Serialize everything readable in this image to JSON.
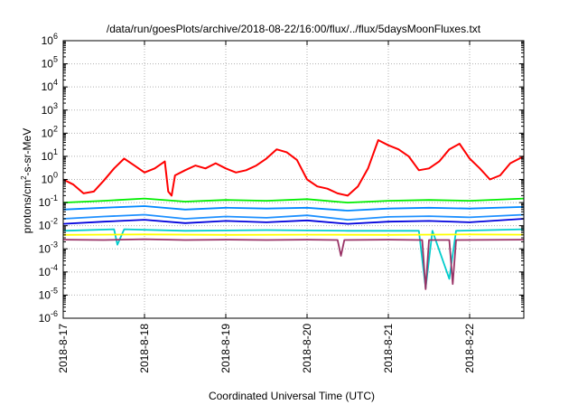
{
  "chart_data": {
    "type": "line",
    "title": "/data/run/goesPlots/archive/2018-08-22/16:00/flux/../flux/5daysMoonFluxes.txt",
    "xlabel": "Coordinated Universal Time (UTC)",
    "ylabel": "protons/cm2-s-sr-MeV",
    "ylabel_parts": {
      "pre": "protons/cm",
      "sup": "2",
      "post": "-s-sr-MeV"
    },
    "yscale": "log",
    "ylim": [
      1e-06,
      1000000.0
    ],
    "xlim": [
      "2018-08-17 00:00",
      "2018-08-22 16:00"
    ],
    "grid": true,
    "legend": "none",
    "y_ticks": [
      {
        "base": "10",
        "exp": "-6",
        "value": 1e-06
      },
      {
        "base": "10",
        "exp": "-5",
        "value": 1e-05
      },
      {
        "base": "10",
        "exp": "-4",
        "value": 0.0001
      },
      {
        "base": "10",
        "exp": "-3",
        "value": 0.001
      },
      {
        "base": "10",
        "exp": "-2",
        "value": 0.01
      },
      {
        "base": "10",
        "exp": "-1",
        "value": 0.1
      },
      {
        "base": "10",
        "exp": "0",
        "value": 1
      },
      {
        "base": "10",
        "exp": "1",
        "value": 10
      },
      {
        "base": "10",
        "exp": "2",
        "value": 100
      },
      {
        "base": "10",
        "exp": "3",
        "value": 1000
      },
      {
        "base": "10",
        "exp": "4",
        "value": 10000
      },
      {
        "base": "10",
        "exp": "5",
        "value": 100000
      },
      {
        "base": "10",
        "exp": "6",
        "value": 1000000
      }
    ],
    "x_ticks": [
      {
        "label": "2018-8-17",
        "date": "2018-08-17 00:00"
      },
      {
        "label": "2018-8-18",
        "date": "2018-08-18 00:00"
      },
      {
        "label": "2018-8-19",
        "date": "2018-08-19 00:00"
      },
      {
        "label": "2018-8-20",
        "date": "2018-08-20 00:00"
      },
      {
        "label": "2018-8-21",
        "date": "2018-08-21 00:00"
      },
      {
        "label": "2018-8-22",
        "date": "2018-08-22 00:00"
      }
    ],
    "series": [
      {
        "color": "#ff0000",
        "points": [
          [
            "2018-08-17 00:00",
            1.0
          ],
          [
            "2018-08-17 03:00",
            0.6
          ],
          [
            "2018-08-17 06:00",
            0.25
          ],
          [
            "2018-08-17 09:00",
            0.3
          ],
          [
            "2018-08-17 12:00",
            0.9
          ],
          [
            "2018-08-17 15:00",
            3.0
          ],
          [
            "2018-08-17 18:00",
            8.0
          ],
          [
            "2018-08-17 21:00",
            4.0
          ],
          [
            "2018-08-18 00:00",
            2.0
          ],
          [
            "2018-08-18 03:00",
            3.0
          ],
          [
            "2018-08-18 06:00",
            6.0
          ],
          [
            "2018-08-18 07:00",
            0.3
          ],
          [
            "2018-08-18 08:00",
            0.2
          ],
          [
            "2018-08-18 09:00",
            1.5
          ],
          [
            "2018-08-18 12:00",
            2.5
          ],
          [
            "2018-08-18 15:00",
            4.0
          ],
          [
            "2018-08-18 18:00",
            3.0
          ],
          [
            "2018-08-18 21:00",
            5.0
          ],
          [
            "2018-08-19 00:00",
            3.0
          ],
          [
            "2018-08-19 03:00",
            2.0
          ],
          [
            "2018-08-19 06:00",
            2.5
          ],
          [
            "2018-08-19 09:00",
            4.0
          ],
          [
            "2018-08-19 12:00",
            8.0
          ],
          [
            "2018-08-19 15:00",
            20
          ],
          [
            "2018-08-19 18:00",
            15
          ],
          [
            "2018-08-19 21:00",
            7.0
          ],
          [
            "2018-08-20 00:00",
            1.0
          ],
          [
            "2018-08-20 03:00",
            0.5
          ],
          [
            "2018-08-20 06:00",
            0.4
          ],
          [
            "2018-08-20 09:00",
            0.25
          ],
          [
            "2018-08-20 12:00",
            0.2
          ],
          [
            "2018-08-20 15:00",
            0.5
          ],
          [
            "2018-08-20 18:00",
            3.0
          ],
          [
            "2018-08-20 21:00",
            50
          ],
          [
            "2018-08-21 00:00",
            30
          ],
          [
            "2018-08-21 03:00",
            20
          ],
          [
            "2018-08-21 06:00",
            10
          ],
          [
            "2018-08-21 09:00",
            2.5
          ],
          [
            "2018-08-21 12:00",
            3.0
          ],
          [
            "2018-08-21 15:00",
            6.0
          ],
          [
            "2018-08-21 18:00",
            20
          ],
          [
            "2018-08-21 21:00",
            35
          ],
          [
            "2018-08-22 00:00",
            8.0
          ],
          [
            "2018-08-22 03:00",
            3.0
          ],
          [
            "2018-08-22 06:00",
            1.0
          ],
          [
            "2018-08-22 09:00",
            1.5
          ],
          [
            "2018-08-22 12:00",
            5.0
          ],
          [
            "2018-08-22 16:00",
            10
          ]
        ]
      },
      {
        "color": "#00ee00",
        "points": [
          [
            "2018-08-17 00:00",
            0.1
          ],
          [
            "2018-08-17 12:00",
            0.12
          ],
          [
            "2018-08-18 00:00",
            0.15
          ],
          [
            "2018-08-18 12:00",
            0.11
          ],
          [
            "2018-08-19 00:00",
            0.13
          ],
          [
            "2018-08-19 12:00",
            0.12
          ],
          [
            "2018-08-20 00:00",
            0.14
          ],
          [
            "2018-08-20 12:00",
            0.1
          ],
          [
            "2018-08-21 00:00",
            0.12
          ],
          [
            "2018-08-21 12:00",
            0.13
          ],
          [
            "2018-08-22 00:00",
            0.12
          ],
          [
            "2018-08-22 16:00",
            0.15
          ]
        ]
      },
      {
        "color": "#0088ff",
        "points": [
          [
            "2018-08-17 00:00",
            0.05
          ],
          [
            "2018-08-17 12:00",
            0.06
          ],
          [
            "2018-08-18 00:00",
            0.07
          ],
          [
            "2018-08-18 12:00",
            0.05
          ],
          [
            "2018-08-19 00:00",
            0.06
          ],
          [
            "2018-08-19 12:00",
            0.055
          ],
          [
            "2018-08-20 00:00",
            0.06
          ],
          [
            "2018-08-20 12:00",
            0.045
          ],
          [
            "2018-08-21 00:00",
            0.055
          ],
          [
            "2018-08-21 12:00",
            0.06
          ],
          [
            "2018-08-22 00:00",
            0.055
          ],
          [
            "2018-08-22 16:00",
            0.065
          ]
        ]
      },
      {
        "color": "#1e90ff",
        "points": [
          [
            "2018-08-17 00:00",
            0.02
          ],
          [
            "2018-08-17 12:00",
            0.025
          ],
          [
            "2018-08-18 00:00",
            0.03
          ],
          [
            "2018-08-18 12:00",
            0.02
          ],
          [
            "2018-08-19 00:00",
            0.025
          ],
          [
            "2018-08-19 12:00",
            0.022
          ],
          [
            "2018-08-20 00:00",
            0.028
          ],
          [
            "2018-08-20 12:00",
            0.018
          ],
          [
            "2018-08-21 00:00",
            0.024
          ],
          [
            "2018-08-21 12:00",
            0.026
          ],
          [
            "2018-08-22 00:00",
            0.023
          ],
          [
            "2018-08-22 16:00",
            0.03
          ]
        ]
      },
      {
        "color": "#0000dd",
        "points": [
          [
            "2018-08-17 00:00",
            0.012
          ],
          [
            "2018-08-17 12:00",
            0.015
          ],
          [
            "2018-08-18 00:00",
            0.018
          ],
          [
            "2018-08-18 12:00",
            0.013
          ],
          [
            "2018-08-19 00:00",
            0.016
          ],
          [
            "2018-08-19 12:00",
            0.014
          ],
          [
            "2018-08-20 00:00",
            0.017
          ],
          [
            "2018-08-20 12:00",
            0.012
          ],
          [
            "2018-08-21 00:00",
            0.015
          ],
          [
            "2018-08-21 12:00",
            0.016
          ],
          [
            "2018-08-22 00:00",
            0.014
          ],
          [
            "2018-08-22 16:00",
            0.02
          ]
        ]
      },
      {
        "color": "#00cccc",
        "points": [
          [
            "2018-08-17 00:00",
            0.006
          ],
          [
            "2018-08-17 15:00",
            0.007
          ],
          [
            "2018-08-17 16:00",
            0.0015
          ],
          [
            "2018-08-17 18:00",
            0.007
          ],
          [
            "2018-08-18 12:00",
            0.006
          ],
          [
            "2018-08-19 12:00",
            0.0065
          ],
          [
            "2018-08-20 12:00",
            0.006
          ],
          [
            "2018-08-21 09:00",
            0.006
          ],
          [
            "2018-08-21 11:00",
            2e-05
          ],
          [
            "2018-08-21 13:00",
            0.006
          ],
          [
            "2018-08-21 18:00",
            5e-05
          ],
          [
            "2018-08-21 20:00",
            0.006
          ],
          [
            "2018-08-22 16:00",
            0.007
          ]
        ]
      },
      {
        "color": "#ffff00",
        "points": [
          [
            "2018-08-17 00:00",
            0.004
          ],
          [
            "2018-08-18 00:00",
            0.0042
          ],
          [
            "2018-08-19 00:00",
            0.004
          ],
          [
            "2018-08-20 00:00",
            0.0041
          ],
          [
            "2018-08-21 00:00",
            0.004
          ],
          [
            "2018-08-22 00:00",
            0.0042
          ],
          [
            "2018-08-22 16:00",
            0.0041
          ]
        ]
      },
      {
        "color": "#993366",
        "points": [
          [
            "2018-08-17 00:00",
            0.0025
          ],
          [
            "2018-08-17 12:00",
            0.0024
          ],
          [
            "2018-08-18 00:00",
            0.0026
          ],
          [
            "2018-08-18 12:00",
            0.0024
          ],
          [
            "2018-08-19 00:00",
            0.0025
          ],
          [
            "2018-08-19 12:00",
            0.0024
          ],
          [
            "2018-08-20 00:00",
            0.0025
          ],
          [
            "2018-08-20 09:00",
            0.0024
          ],
          [
            "2018-08-20 10:00",
            0.0005
          ],
          [
            "2018-08-20 11:00",
            0.0024
          ],
          [
            "2018-08-21 00:00",
            0.0025
          ],
          [
            "2018-08-21 10:00",
            0.0024
          ],
          [
            "2018-08-21 11:00",
            1.8e-05
          ],
          [
            "2018-08-21 12:00",
            0.0024
          ],
          [
            "2018-08-21 18:00",
            0.0024
          ],
          [
            "2018-08-21 19:00",
            3e-05
          ],
          [
            "2018-08-21 20:00",
            0.0024
          ],
          [
            "2018-08-22 16:00",
            0.0025
          ]
        ]
      }
    ]
  }
}
